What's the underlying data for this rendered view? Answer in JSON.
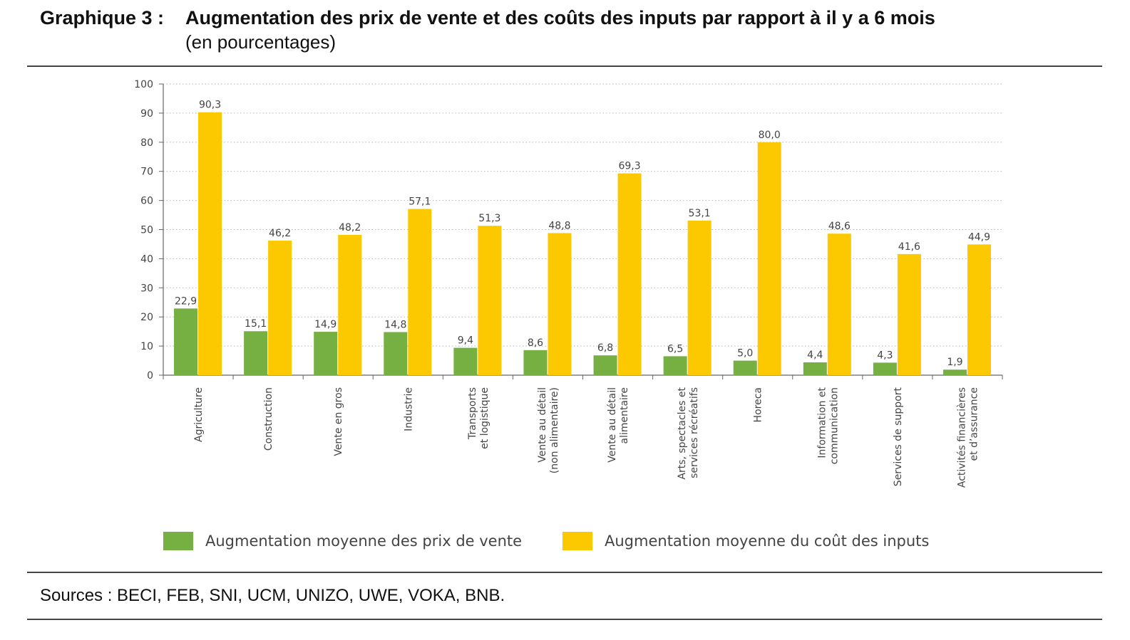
{
  "header": {
    "label": "Graphique 3 :",
    "title": "Augmentation des prix de vente et des coûts des inputs par rapport à il y a 6 mois",
    "subtitle": "(en pourcentages)"
  },
  "chart_data": {
    "type": "bar",
    "categories": [
      [
        "Agriculture"
      ],
      [
        "Construction"
      ],
      [
        "Vente en gros"
      ],
      [
        "Industrie"
      ],
      [
        "Transports",
        "et logistique"
      ],
      [
        "Vente au détail",
        "(non alimentaire)"
      ],
      [
        "Vente au détail",
        "alimentaire"
      ],
      [
        "Arts, spectacles et",
        "services récréatifs"
      ],
      [
        "Horeca"
      ],
      [
        "Information et",
        "communication"
      ],
      [
        "Services de support"
      ],
      [
        "Activités financières",
        "et d’assurance"
      ]
    ],
    "series": [
      {
        "name": "Augmentation moyenne des prix de vente",
        "color": "#76b043",
        "values": [
          22.9,
          15.1,
          14.9,
          14.8,
          9.4,
          8.6,
          6.8,
          6.5,
          5.0,
          4.4,
          4.3,
          1.9
        ],
        "labels": [
          "22,9",
          "15,1",
          "14,9",
          "14,8",
          "9,4",
          "8,6",
          "6,8",
          "6,5",
          "5,0",
          "4,4",
          "4,3",
          "1,9"
        ]
      },
      {
        "name": "Augmentation moyenne du coût des inputs",
        "color": "#fcc800",
        "values": [
          90.3,
          46.2,
          48.2,
          57.1,
          51.3,
          48.8,
          69.3,
          53.1,
          80.0,
          48.6,
          41.6,
          44.9
        ],
        "labels": [
          "90,3",
          "46,2",
          "48,2",
          "57,1",
          "51,3",
          "48,8",
          "69,3",
          "53,1",
          "80,0",
          "48,6",
          "41,6",
          "44,9"
        ]
      }
    ],
    "yticks": [
      0,
      10,
      20,
      30,
      40,
      50,
      60,
      70,
      80,
      90,
      100
    ],
    "ylim": [
      0,
      100
    ],
    "grid": true,
    "legend": "bottom"
  },
  "sources": "Sources : BECI, FEB, SNI, UCM, UNIZO, UWE, VOKA, BNB."
}
